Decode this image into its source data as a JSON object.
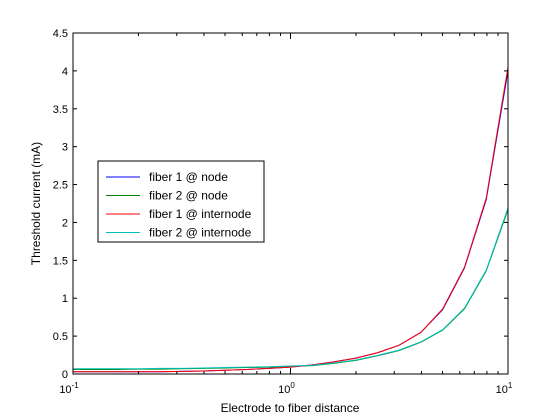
{
  "chart_data": {
    "type": "line",
    "xlabel": "Electrode to fiber distance",
    "ylabel": "Threshold current (mA)",
    "xscale": "log",
    "xlim": [
      0.1,
      10
    ],
    "ylim": [
      0,
      4.5
    ],
    "grid": false,
    "legend_position": "left",
    "x_ticks": [
      {
        "value": 0.1,
        "base": "10",
        "exp": "-1"
      },
      {
        "value": 1,
        "base": "10",
        "exp": "0"
      },
      {
        "value": 10,
        "base": "10",
        "exp": "1"
      }
    ],
    "y_ticks": [
      {
        "value": 0,
        "label": "0"
      },
      {
        "value": 0.5,
        "label": "0.5"
      },
      {
        "value": 1,
        "label": "1"
      },
      {
        "value": 1.5,
        "label": "1.5"
      },
      {
        "value": 2,
        "label": "2"
      },
      {
        "value": 2.5,
        "label": "2.5"
      },
      {
        "value": 3,
        "label": "3"
      },
      {
        "value": 3.5,
        "label": "3.5"
      },
      {
        "value": 4,
        "label": "4"
      },
      {
        "value": 4.5,
        "label": "4.5"
      }
    ],
    "x": [
      0.1,
      0.126,
      0.158,
      0.2,
      0.251,
      0.316,
      0.398,
      0.501,
      0.631,
      0.794,
      1.0,
      1.26,
      1.58,
      2.0,
      2.51,
      3.16,
      3.98,
      5.01,
      6.31,
      7.94,
      10.0
    ],
    "series": [
      {
        "name": "fiber 1 @ node",
        "color": "#0000ff",
        "values": [
          0.03,
          0.03,
          0.03,
          0.03,
          0.03,
          0.035,
          0.04,
          0.05,
          0.06,
          0.075,
          0.09,
          0.12,
          0.16,
          0.21,
          0.28,
          0.38,
          0.55,
          0.85,
          1.4,
          2.3,
          4.0
        ]
      },
      {
        "name": "fiber 2 @ node",
        "color": "#008000",
        "values": [
          0.06,
          0.06,
          0.06,
          0.065,
          0.065,
          0.07,
          0.075,
          0.08,
          0.085,
          0.09,
          0.1,
          0.11,
          0.14,
          0.18,
          0.24,
          0.31,
          0.42,
          0.58,
          0.86,
          1.36,
          2.17
        ]
      },
      {
        "name": "fiber 1 @ internode",
        "color": "#ff0000",
        "values": [
          0.03,
          0.03,
          0.03,
          0.03,
          0.03,
          0.035,
          0.04,
          0.05,
          0.06,
          0.075,
          0.09,
          0.12,
          0.16,
          0.21,
          0.28,
          0.38,
          0.55,
          0.86,
          1.41,
          2.32,
          4.05
        ]
      },
      {
        "name": "fiber 2 @ internode",
        "color": "#00bfbf",
        "values": [
          0.07,
          0.07,
          0.07,
          0.07,
          0.075,
          0.075,
          0.08,
          0.085,
          0.09,
          0.095,
          0.105,
          0.115,
          0.145,
          0.185,
          0.245,
          0.315,
          0.425,
          0.585,
          0.87,
          1.37,
          2.19
        ]
      }
    ]
  }
}
